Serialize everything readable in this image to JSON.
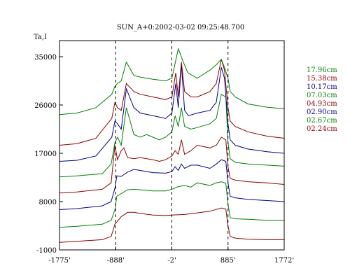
{
  "chart_data": {
    "type": "line",
    "title": "SUN_A+0:2002-03-02 09:25:48.700",
    "ylabel": "Ta,I",
    "xlabel": "",
    "xlim": [
      -1775,
      1772
    ],
    "ylim": [
      -1000,
      38000
    ],
    "x_ticks": [
      {
        "value": -1775,
        "label": "-1775'"
      },
      {
        "value": -888,
        "label": "-888'"
      },
      {
        "value": -2,
        "label": "-2'"
      },
      {
        "value": 885,
        "label": "885'"
      },
      {
        "value": 1772,
        "label": "1772'"
      }
    ],
    "y_ticks": [
      {
        "value": 35000,
        "label": "35000"
      },
      {
        "value": 26000,
        "label": "26000"
      },
      {
        "value": 17000,
        "label": "17000"
      },
      {
        "value": 8000,
        "label": "8000"
      },
      {
        "value": -1000,
        "label": "-1000"
      }
    ],
    "vlines": [
      -888,
      -2,
      885
    ],
    "grid": false,
    "legend_position": "right",
    "series": [
      {
        "name": "02.24cm",
        "color": "#8b0000",
        "x": [
          -1775,
          -1500,
          -1100,
          -960,
          -900,
          -870,
          -800,
          -700,
          -600,
          -500,
          -300,
          -100,
          0,
          200,
          400,
          600,
          780,
          850,
          885,
          920,
          1000,
          1200,
          1500,
          1772
        ],
        "y": [
          400,
          600,
          900,
          1500,
          3800,
          4200,
          5200,
          6000,
          6000,
          5800,
          5500,
          5400,
          5500,
          5600,
          5900,
          6200,
          6800,
          6600,
          3500,
          1500,
          1200,
          1000,
          900,
          900
        ]
      },
      {
        "name": "02.67cm",
        "color": "#008000",
        "x": [
          -1775,
          -1500,
          -1100,
          -960,
          -900,
          -870,
          -800,
          -700,
          -600,
          -500,
          -300,
          -100,
          0,
          100,
          200,
          300,
          400,
          600,
          700,
          780,
          850,
          885,
          920,
          1000,
          1200,
          1500,
          1772
        ],
        "y": [
          3200,
          3400,
          3800,
          4500,
          6500,
          9000,
          9500,
          10200,
          10300,
          10200,
          10000,
          10000,
          10300,
          10800,
          11000,
          10700,
          11500,
          11000,
          11500,
          11700,
          11400,
          7500,
          5000,
          4800,
          4700,
          4500,
          4500
        ]
      },
      {
        "name": "02.90cm",
        "color": "#00008b",
        "x": [
          -1775,
          -1500,
          -1100,
          -960,
          -900,
          -870,
          -800,
          -700,
          -600,
          -500,
          -300,
          -100,
          0,
          50,
          100,
          150,
          200,
          300,
          400,
          600,
          700,
          780,
          850,
          885,
          920,
          1000,
          1200,
          1500,
          1772
        ],
        "y": [
          6500,
          6700,
          7200,
          8000,
          10500,
          12800,
          12700,
          13500,
          14000,
          13800,
          13400,
          13300,
          13600,
          14500,
          13800,
          15000,
          14200,
          14800,
          14800,
          14200,
          15000,
          15800,
          15500,
          11500,
          9000,
          8700,
          8400,
          8200,
          8000
        ]
      },
      {
        "name": "04.93cm",
        "color": "#8b0000",
        "x": [
          -1775,
          -1500,
          -1100,
          -960,
          -930,
          -900,
          -860,
          -800,
          -760,
          -700,
          -600,
          -500,
          -300,
          -200,
          -100,
          0,
          50,
          100,
          150,
          200,
          300,
          400,
          600,
          700,
          780,
          850,
          885,
          920,
          1000,
          1200,
          1500,
          1772
        ],
        "y": [
          9600,
          9800,
          10300,
          11500,
          15000,
          18500,
          15800,
          17500,
          18000,
          16200,
          16000,
          16200,
          15800,
          15500,
          15800,
          16500,
          17500,
          16800,
          19500,
          16800,
          17500,
          18500,
          18000,
          18500,
          20000,
          19500,
          14500,
          12300,
          12000,
          11700,
          11500,
          11200
        ]
      },
      {
        "name": "07.03cm",
        "color": "#008000",
        "x": [
          -1775,
          -1500,
          -1100,
          -960,
          -900,
          -860,
          -800,
          -720,
          -600,
          -500,
          -400,
          -300,
          -200,
          -100,
          0,
          50,
          100,
          150,
          200,
          300,
          400,
          600,
          700,
          780,
          850,
          885,
          920,
          1000,
          1200,
          1500,
          1772
        ],
        "y": [
          12600,
          12800,
          13200,
          15000,
          19000,
          20000,
          18500,
          25500,
          20500,
          20000,
          20500,
          20000,
          19500,
          20000,
          21000,
          24000,
          22000,
          25500,
          22000,
          21500,
          21800,
          22500,
          23500,
          28000,
          27500,
          19000,
          16000,
          15300,
          15000,
          14800,
          14600
        ]
      },
      {
        "name": "10.17cm",
        "color": "#00008b",
        "x": [
          -1775,
          -1500,
          -1200,
          -950,
          -900,
          -860,
          -800,
          -720,
          -600,
          -500,
          -300,
          -100,
          0,
          60,
          100,
          150,
          200,
          260,
          400,
          600,
          700,
          780,
          830,
          885,
          920,
          1000,
          1200,
          1500,
          1772
        ],
        "y": [
          15500,
          15700,
          16500,
          20000,
          23000,
          22500,
          21500,
          29000,
          25500,
          24500,
          24000,
          23500,
          24500,
          30000,
          25500,
          33500,
          25000,
          24000,
          24500,
          25000,
          26500,
          33000,
          31000,
          22500,
          19500,
          18500,
          17800,
          17300,
          17000
        ]
      },
      {
        "name": "15.38cm",
        "color": "#8b0000",
        "x": [
          -1775,
          -1500,
          -1200,
          -950,
          -900,
          -860,
          -800,
          -720,
          -600,
          -500,
          -300,
          -100,
          0,
          60,
          100,
          150,
          200,
          300,
          400,
          600,
          700,
          780,
          830,
          885,
          920,
          1000,
          1200,
          1500,
          1772
        ],
        "y": [
          18500,
          18800,
          19800,
          23500,
          26500,
          25500,
          25000,
          30000,
          28500,
          28000,
          27500,
          27000,
          27500,
          32000,
          27500,
          34000,
          28500,
          27500,
          27500,
          28500,
          30000,
          34500,
          32500,
          25500,
          23000,
          22000,
          21000,
          20200,
          19800
        ]
      },
      {
        "name": "17.96cm",
        "color": "#008000",
        "x": [
          -1775,
          -1500,
          -1200,
          -950,
          -900,
          -860,
          -800,
          -720,
          -600,
          -500,
          -300,
          -100,
          0,
          100,
          180,
          250,
          400,
          600,
          700,
          780,
          830,
          885,
          920,
          1000,
          1200,
          1500,
          1772
        ],
        "y": [
          24200,
          24500,
          25500,
          28000,
          29500,
          30000,
          30500,
          34000,
          31500,
          31200,
          30800,
          30500,
          31000,
          36500,
          34000,
          32000,
          31000,
          32500,
          33500,
          34500,
          33000,
          31000,
          28500,
          27500,
          26200,
          25600,
          25300
        ]
      }
    ]
  }
}
